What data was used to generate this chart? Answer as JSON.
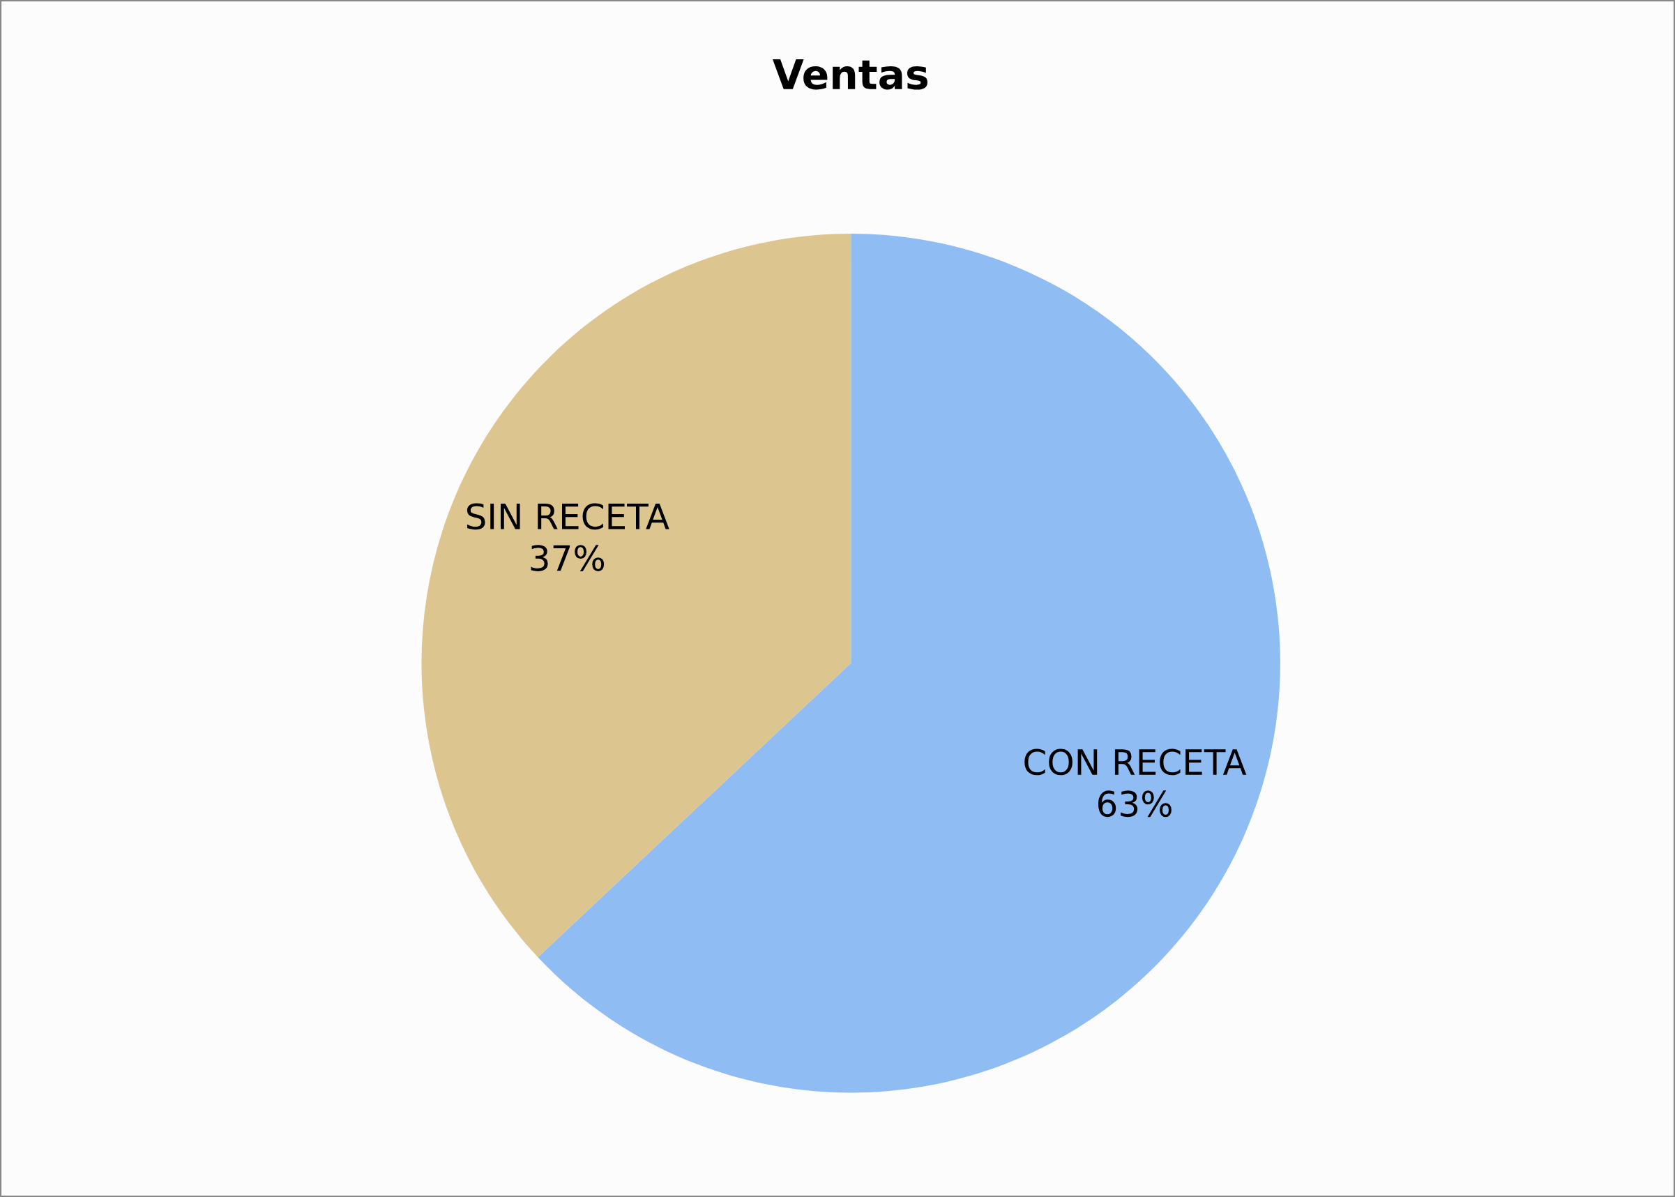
{
  "chart_data": {
    "type": "pie",
    "title": "Ventas",
    "categories": [
      "CON RECETA",
      "SIN RECETA"
    ],
    "values": [
      63,
      37
    ],
    "colors": [
      "#8fbdf3",
      "#dcc58f"
    ],
    "value_labels": [
      "63%",
      "37%"
    ],
    "legend": false
  }
}
